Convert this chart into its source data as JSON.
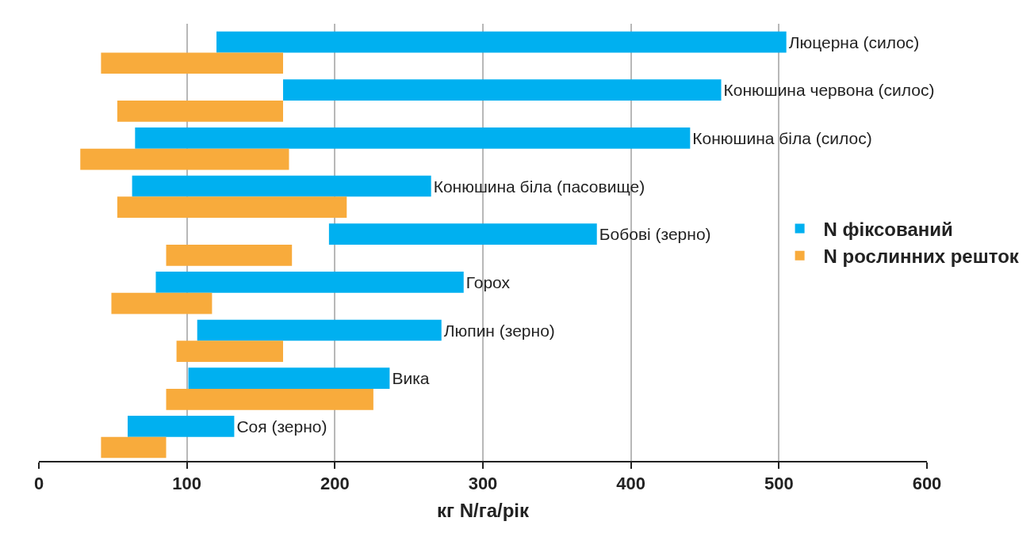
{
  "chart_data": {
    "type": "bar",
    "orientation": "horizontal",
    "xlabel": "кг N/га/рік",
    "categories": [
      "Люцерна (силос)",
      "Конюшина червона (силос)",
      "Конюшина біла (силос)",
      "Конюшина біла (пасовище)",
      "Бобові (зерно)",
      "Горох",
      "Люпин (зерно)",
      "Вика",
      "Соя (зерно)"
    ],
    "series": [
      {
        "name": "N фіксований",
        "color": "#00b0f0",
        "base": [
          120,
          165,
          65,
          63,
          196,
          79,
          107,
          101,
          60
        ],
        "values": [
          385,
          296,
          375,
          202,
          181,
          208,
          165,
          136,
          72
        ]
      },
      {
        "name": "N рослинних решток",
        "color": "#f8ab3c",
        "base": [
          42,
          53,
          28,
          53,
          86,
          49,
          93,
          86,
          42
        ],
        "values": [
          123,
          112,
          141,
          155,
          85,
          68,
          72,
          140,
          44
        ]
      }
    ],
    "xlim": [
      0,
      600
    ],
    "xticks": [
      0,
      100,
      200,
      300,
      400,
      500,
      600
    ],
    "grid": "x",
    "legend": "right",
    "tick_labels": "x"
  }
}
